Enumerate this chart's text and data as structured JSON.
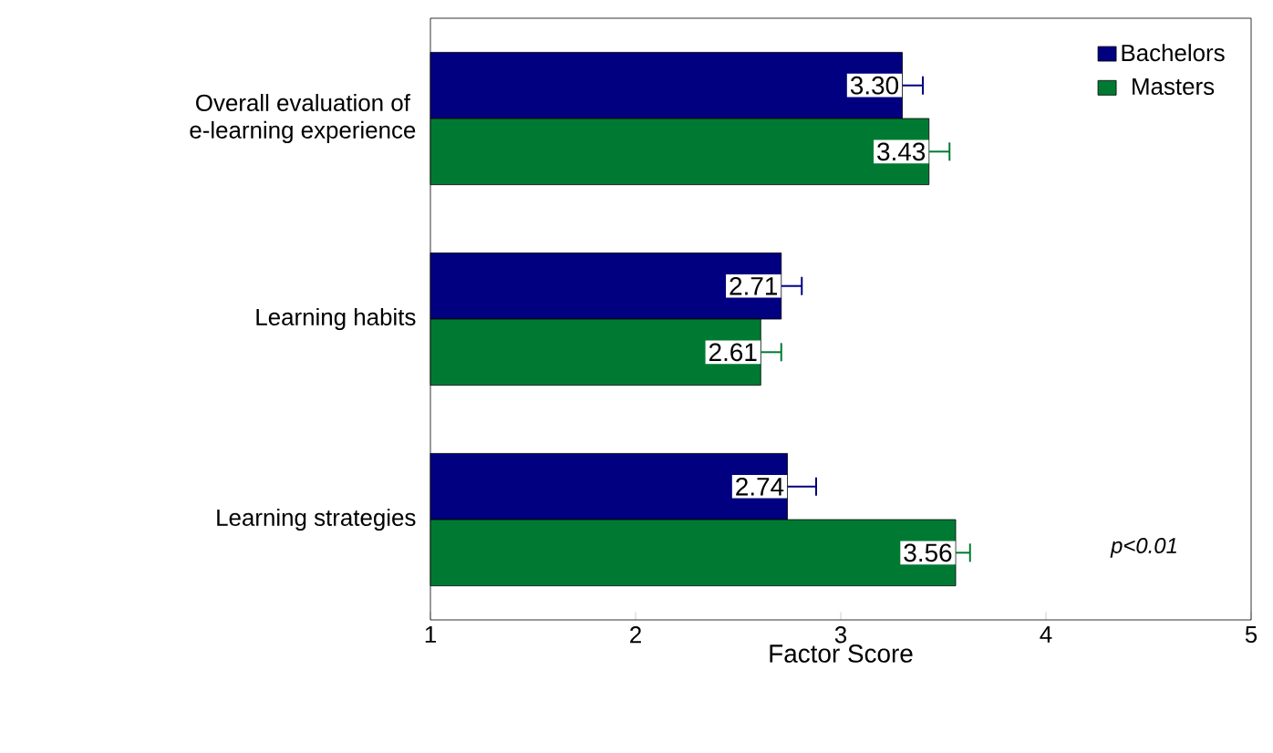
{
  "chart_data": {
    "type": "bar",
    "orientation": "horizontal",
    "xlabel": "Factor Score",
    "categories": [
      "Overall evaluation of\ne-learning experience",
      "Learning habits",
      "Learning strategies"
    ],
    "series": [
      {
        "name": "Bachelors",
        "color": "#000080",
        "values": [
          3.3,
          2.71,
          2.74
        ],
        "value_labels": [
          "3.30",
          "2.71",
          "2.74"
        ],
        "errors": [
          [
            3.3,
            3.4
          ],
          [
            2.71,
            2.81
          ],
          [
            2.74,
            2.88
          ]
        ]
      },
      {
        "name": "Masters",
        "color": "#007a33",
        "values": [
          3.43,
          2.61,
          3.56
        ],
        "value_labels": [
          "3.43",
          "2.61",
          "3.56"
        ],
        "errors": [
          [
            3.43,
            3.53
          ],
          [
            2.61,
            2.71
          ],
          [
            3.56,
            3.63
          ]
        ]
      }
    ],
    "xlim": [
      1,
      5
    ],
    "xticks": [
      1,
      2,
      3,
      4,
      5
    ],
    "legend": "top right",
    "grid": false,
    "annotations": [
      "p<0.01"
    ]
  }
}
